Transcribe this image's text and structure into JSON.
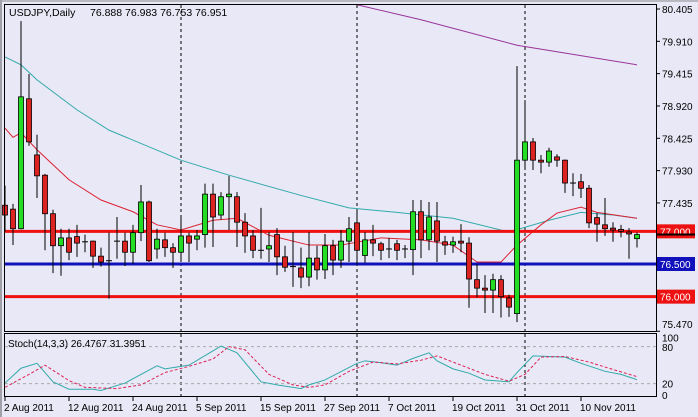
{
  "chart_data": {
    "type": "candlestick",
    "symbol_label": "USDJPY,Daily",
    "header_ohlc": "76.888 76.983 76.753 76.951",
    "colors": {
      "background": "#e8e8f6",
      "bull": "#22dd22",
      "bear": "#dd2222",
      "ma_fast": "#dd2233",
      "ma_mid": "#33aaaa",
      "ma_slow": "#993399",
      "stoch_main": "#33aaaa",
      "stoch_signal": "#dd2255"
    },
    "y_range": [
      75.0,
      80.405
    ],
    "y_ticks": [
      "80.405",
      "79.910",
      "79.415",
      "78.920",
      "78.425",
      "77.930",
      "77.435",
      "75.470"
    ],
    "x_ticks": [
      {
        "label": "2 Aug 2011",
        "bar": 0
      },
      {
        "label": "12 Aug 2011",
        "bar": 8
      },
      {
        "label": "24 Aug 2011",
        "bar": 16
      },
      {
        "label": "5 Sep 2011",
        "bar": 24
      },
      {
        "label": "15 Sep 2011",
        "bar": 32
      },
      {
        "label": "27 Sep 2011",
        "bar": 40
      },
      {
        "label": "7 Oct 2011",
        "bar": 48
      },
      {
        "label": "19 Oct 2011",
        "bar": 56
      },
      {
        "label": "31 Oct 2011",
        "bar": 64
      },
      {
        "label": "10 Nov 2011",
        "bar": 72
      }
    ],
    "period_separators_bar": [
      22,
      44,
      65
    ],
    "horizontal_lines": [
      {
        "price": 77.0,
        "label": "77.000",
        "color": "#ee1111"
      },
      {
        "price": 76.5,
        "label": "76.500",
        "color": "#1111bb"
      },
      {
        "price": 76.0,
        "label": "76.000",
        "color": "#ee1111"
      }
    ],
    "candles_ohlc": [
      [
        77.4,
        77.7,
        77.0,
        77.25
      ],
      [
        77.34,
        77.42,
        76.79,
        77.04
      ],
      [
        77.04,
        80.22,
        77.03,
        79.06
      ],
      [
        79.03,
        79.41,
        78.31,
        78.37
      ],
      [
        78.17,
        78.48,
        77.51,
        77.85
      ],
      [
        77.86,
        77.88,
        76.71,
        77.27
      ],
      [
        77.27,
        77.33,
        76.36,
        76.78
      ],
      [
        76.78,
        77.04,
        76.32,
        76.9
      ],
      [
        76.9,
        77.04,
        76.56,
        76.68
      ],
      [
        76.92,
        77.1,
        76.61,
        76.82
      ],
      [
        76.84,
        76.95,
        76.68,
        76.84
      ],
      [
        76.85,
        76.86,
        76.44,
        76.62
      ],
      [
        76.62,
        76.75,
        76.46,
        76.53
      ],
      [
        76.55,
        76.98,
        75.97,
        76.55
      ],
      [
        76.85,
        77.22,
        76.58,
        76.85
      ],
      [
        76.85,
        76.98,
        76.47,
        76.68
      ],
      [
        76.68,
        77.1,
        76.5,
        76.98
      ],
      [
        76.98,
        77.71,
        76.85,
        77.45
      ],
      [
        77.45,
        77.47,
        76.53,
        76.55
      ],
      [
        76.73,
        77.04,
        76.58,
        76.88
      ],
      [
        76.87,
        76.98,
        76.61,
        76.75
      ],
      [
        76.75,
        76.82,
        76.44,
        76.68
      ],
      [
        76.68,
        77.25,
        76.53,
        76.93
      ],
      [
        76.93,
        76.98,
        76.53,
        76.82
      ],
      [
        76.88,
        77.02,
        76.71,
        76.93
      ],
      [
        76.95,
        77.73,
        76.75,
        77.57
      ],
      [
        77.57,
        77.73,
        76.76,
        77.22
      ],
      [
        77.25,
        77.6,
        77.18,
        77.53
      ],
      [
        77.53,
        77.85,
        77.02,
        77.57
      ],
      [
        77.53,
        77.6,
        76.76,
        77.14
      ],
      [
        77.14,
        77.28,
        76.67,
        76.93
      ],
      [
        76.93,
        77.02,
        76.59,
        76.71
      ],
      [
        76.71,
        77.36,
        76.58,
        76.7
      ],
      [
        76.73,
        76.99,
        76.53,
        76.78
      ],
      [
        76.95,
        77.05,
        76.33,
        76.61
      ],
      [
        76.61,
        76.78,
        76.38,
        76.45
      ],
      [
        76.46,
        76.99,
        76.15,
        76.45
      ],
      [
        76.44,
        76.75,
        76.13,
        76.3
      ],
      [
        76.3,
        76.99,
        76.16,
        76.59
      ],
      [
        76.59,
        76.78,
        76.26,
        76.41
      ],
      [
        76.41,
        76.96,
        76.27,
        76.78
      ],
      [
        76.78,
        76.87,
        76.33,
        76.56
      ],
      [
        76.56,
        77.02,
        76.44,
        76.85
      ],
      [
        76.85,
        77.22,
        76.53,
        77.04
      ],
      [
        77.13,
        77.33,
        76.49,
        76.71
      ],
      [
        76.63,
        76.99,
        76.52,
        76.87
      ],
      [
        76.87,
        77.1,
        76.62,
        76.82
      ],
      [
        76.81,
        76.84,
        76.56,
        76.71
      ],
      [
        76.73,
        76.9,
        76.59,
        76.73
      ],
      [
        76.81,
        76.87,
        76.56,
        76.71
      ],
      [
        76.73,
        76.79,
        76.59,
        76.72
      ],
      [
        76.72,
        77.48,
        76.33,
        77.3
      ],
      [
        77.3,
        77.48,
        76.59,
        76.87
      ],
      [
        76.87,
        77.45,
        76.71,
        77.22
      ],
      [
        77.16,
        77.45,
        76.53,
        76.85
      ],
      [
        76.84,
        76.93,
        76.64,
        76.79
      ],
      [
        76.79,
        76.92,
        76.67,
        76.84
      ],
      [
        76.85,
        77.11,
        76.68,
        76.82
      ],
      [
        76.82,
        76.91,
        75.83,
        76.27
      ],
      [
        76.26,
        76.5,
        75.99,
        76.13
      ],
      [
        76.13,
        76.33,
        75.75,
        76.1
      ],
      [
        76.1,
        76.35,
        75.75,
        76.26
      ],
      [
        76.26,
        76.33,
        75.68,
        76.0
      ],
      [
        75.98,
        76.03,
        75.69,
        75.84
      ],
      [
        75.74,
        79.53,
        75.61,
        78.09
      ],
      [
        78.09,
        79.01,
        77.94,
        78.37
      ],
      [
        78.37,
        78.43,
        77.94,
        78.09
      ],
      [
        78.09,
        78.17,
        77.89,
        78.06
      ],
      [
        78.06,
        78.28,
        77.99,
        78.23
      ],
      [
        78.14,
        78.18,
        77.99,
        78.09
      ],
      [
        78.09,
        78.1,
        77.59,
        77.74
      ],
      [
        77.74,
        77.89,
        77.54,
        77.73
      ],
      [
        77.76,
        77.88,
        77.51,
        77.66
      ],
      [
        77.66,
        77.71,
        77.05,
        77.13
      ],
      [
        77.21,
        77.28,
        76.84,
        77.11
      ],
      [
        77.1,
        77.51,
        76.93,
        77.04
      ],
      [
        77.05,
        77.14,
        76.84,
        77.02
      ],
      [
        77.03,
        77.1,
        76.91,
        77.0
      ],
      [
        76.99,
        77.05,
        76.58,
        76.96
      ],
      [
        76.888,
        76.983,
        76.753,
        76.951
      ]
    ],
    "ma_fast": [
      [
        0,
        78.58
      ],
      [
        1,
        78.44
      ],
      [
        2,
        78.51
      ],
      [
        4,
        78.25
      ],
      [
        8,
        77.79
      ],
      [
        12,
        77.48
      ],
      [
        16,
        77.3
      ],
      [
        19,
        77.1
      ],
      [
        22,
        77.02
      ],
      [
        26,
        77.17
      ],
      [
        29,
        77.2
      ],
      [
        33,
        76.94
      ],
      [
        38,
        76.79
      ],
      [
        42,
        76.79
      ],
      [
        47,
        76.9
      ],
      [
        52,
        76.87
      ],
      [
        56,
        76.79
      ],
      [
        59,
        76.53
      ],
      [
        62,
        76.53
      ],
      [
        64,
        76.79
      ],
      [
        67,
        77.1
      ],
      [
        69,
        77.28
      ],
      [
        72,
        77.37
      ],
      [
        74,
        77.29
      ],
      [
        79,
        77.2
      ]
    ],
    "ma_mid": [
      [
        0,
        79.67
      ],
      [
        2,
        79.55
      ],
      [
        4,
        79.32
      ],
      [
        9,
        78.86
      ],
      [
        13,
        78.55
      ],
      [
        22,
        78.09
      ],
      [
        28,
        77.86
      ],
      [
        37,
        77.55
      ],
      [
        43,
        77.36
      ],
      [
        49,
        77.29
      ],
      [
        56,
        77.2
      ],
      [
        63,
        76.99
      ],
      [
        68,
        77.17
      ],
      [
        72,
        77.29
      ],
      [
        76,
        77.25
      ],
      [
        79,
        77.2
      ]
    ],
    "ma_slow": [
      [
        44,
        80.47
      ],
      [
        52,
        80.24
      ],
      [
        64,
        79.85
      ],
      [
        79,
        79.55
      ]
    ],
    "stochastic": {
      "label": "Stoch(14,3,3) 26.4767 31.3951",
      "range": [
        0,
        100
      ],
      "levels": [
        20,
        80
      ],
      "tick_labels": [
        "100",
        "80",
        "20",
        "0"
      ],
      "main": [
        [
          0,
          21
        ],
        [
          2,
          45
        ],
        [
          4,
          53
        ],
        [
          6,
          23
        ],
        [
          8,
          11
        ],
        [
          11,
          11
        ],
        [
          12,
          9
        ],
        [
          15,
          21
        ],
        [
          19,
          49
        ],
        [
          20,
          44
        ],
        [
          23,
          50
        ],
        [
          27,
          81
        ],
        [
          29,
          70
        ],
        [
          32,
          23
        ],
        [
          34,
          18
        ],
        [
          37,
          12
        ],
        [
          38,
          18
        ],
        [
          40,
          26
        ],
        [
          44,
          53
        ],
        [
          45,
          57
        ],
        [
          47,
          54
        ],
        [
          49,
          50
        ],
        [
          51,
          61
        ],
        [
          53,
          70
        ],
        [
          54,
          57
        ],
        [
          56,
          44
        ],
        [
          58,
          37
        ],
        [
          60,
          26
        ],
        [
          63,
          23
        ],
        [
          64,
          38
        ],
        [
          66,
          65
        ],
        [
          70,
          63
        ],
        [
          72,
          53
        ],
        [
          75,
          40
        ],
        [
          77,
          35
        ],
        [
          79,
          26.4767
        ]
      ],
      "signal": [
        [
          0,
          14
        ],
        [
          3,
          35
        ],
        [
          5,
          50
        ],
        [
          8,
          25
        ],
        [
          10,
          14
        ],
        [
          14,
          12
        ],
        [
          17,
          18
        ],
        [
          20,
          38
        ],
        [
          23,
          48
        ],
        [
          26,
          60
        ],
        [
          28,
          80
        ],
        [
          30,
          75
        ],
        [
          33,
          35
        ],
        [
          36,
          18
        ],
        [
          38,
          14
        ],
        [
          40,
          18
        ],
        [
          43,
          40
        ],
        [
          46,
          55
        ],
        [
          49,
          52
        ],
        [
          52,
          58
        ],
        [
          54,
          65
        ],
        [
          57,
          50
        ],
        [
          60,
          35
        ],
        [
          63,
          24
        ],
        [
          65,
          35
        ],
        [
          67,
          63
        ],
        [
          70,
          64
        ],
        [
          73,
          55
        ],
        [
          76,
          43
        ],
        [
          79,
          31.3951
        ]
      ]
    }
  }
}
